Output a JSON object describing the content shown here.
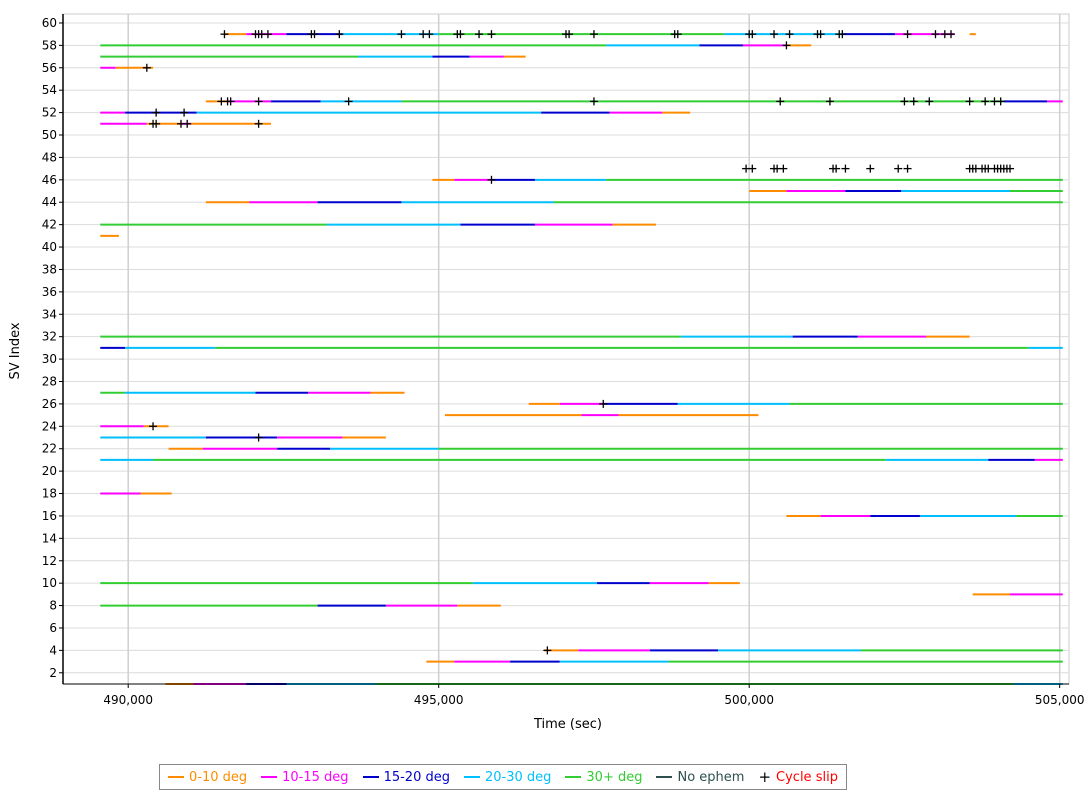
{
  "chart_data": {
    "type": "timeline",
    "xlabel": "Time (sec)",
    "ylabel": "SV Index",
    "xlim": [
      488950,
      505150
    ],
    "ylim": [
      1,
      60.8
    ],
    "xticks": [
      490000,
      495000,
      500000,
      505000
    ],
    "xtick_labels": [
      "490,000",
      "495,000",
      "500,000",
      "505,000"
    ],
    "yticks": [
      2,
      4,
      6,
      8,
      10,
      12,
      14,
      16,
      18,
      20,
      22,
      24,
      26,
      28,
      30,
      32,
      34,
      36,
      38,
      40,
      42,
      44,
      46,
      48,
      50,
      52,
      54,
      56,
      58,
      60
    ],
    "grid": true,
    "legend_position": "bottom",
    "colors": {
      "c0": "#ff8c00",
      "c1": "#ff00ff",
      "c2": "#0000cd",
      "c3": "#00bfff",
      "c4": "#32cd32",
      "noeph": "#2f4f4f",
      "slip": "#000000"
    },
    "legend": [
      {
        "key": "c0",
        "label": "0-10 deg"
      },
      {
        "key": "c1",
        "label": "10-15 deg"
      },
      {
        "key": "c2",
        "label": "15-20 deg"
      },
      {
        "key": "c3",
        "label": "20-30 deg"
      },
      {
        "key": "c4",
        "label": "30+ deg"
      },
      {
        "key": "noeph",
        "label": "No ephem"
      },
      {
        "key": "slip",
        "label": "Cycle slip",
        "marker": "plus"
      }
    ],
    "tracks": [
      {
        "sv": 59,
        "segments": [
          [
            491550,
            491900,
            "c0"
          ],
          [
            491900,
            492550,
            "c1"
          ],
          [
            492550,
            492900,
            "c2"
          ],
          [
            492900,
            493450,
            "c2"
          ],
          [
            493450,
            495000,
            "c3"
          ],
          [
            495000,
            499600,
            "c4"
          ],
          [
            499600,
            500800,
            "c3"
          ],
          [
            500800,
            501500,
            "c3"
          ],
          [
            501500,
            502350,
            "c2"
          ],
          [
            502350,
            503300,
            "c1"
          ],
          [
            503550,
            503650,
            "c0"
          ]
        ]
      },
      {
        "sv": 58,
        "segments": [
          [
            489550,
            497700,
            "c4"
          ],
          [
            497700,
            499200,
            "c3"
          ],
          [
            499200,
            499900,
            "c2"
          ],
          [
            499900,
            500600,
            "c1"
          ],
          [
            500600,
            501000,
            "c0"
          ]
        ]
      },
      {
        "sv": 57,
        "segments": [
          [
            489550,
            493700,
            "c4"
          ],
          [
            493700,
            494900,
            "c3"
          ],
          [
            494900,
            495500,
            "c2"
          ],
          [
            495500,
            496050,
            "c1"
          ],
          [
            496050,
            496400,
            "c0"
          ]
        ]
      },
      {
        "sv": 56,
        "segments": [
          [
            489550,
            489800,
            "c1"
          ],
          [
            489800,
            490400,
            "c0"
          ]
        ]
      },
      {
        "sv": 53,
        "segments": [
          [
            491250,
            491600,
            "c0"
          ],
          [
            491600,
            492300,
            "c1"
          ],
          [
            492300,
            493100,
            "c2"
          ],
          [
            493100,
            494400,
            "c3"
          ],
          [
            494400,
            500900,
            "c4"
          ],
          [
            500900,
            504100,
            "c4"
          ],
          [
            504100,
            504800,
            "c2"
          ],
          [
            504800,
            505050,
            "c1"
          ]
        ]
      },
      {
        "sv": 52,
        "segments": [
          [
            489550,
            489950,
            "c1"
          ],
          [
            489950,
            490600,
            "c2"
          ],
          [
            490600,
            491100,
            "c2"
          ],
          [
            491100,
            496650,
            "c3"
          ],
          [
            496650,
            497750,
            "c2"
          ],
          [
            497750,
            498600,
            "c1"
          ],
          [
            498600,
            499050,
            "c0"
          ]
        ]
      },
      {
        "sv": 51,
        "segments": [
          [
            489550,
            490300,
            "c1"
          ],
          [
            490300,
            490850,
            "c0"
          ],
          [
            490850,
            491000,
            "c1"
          ],
          [
            491000,
            492300,
            "c0"
          ]
        ]
      },
      {
        "sv": 46,
        "segments": [
          [
            494900,
            495250,
            "c0"
          ],
          [
            495250,
            495850,
            "c1"
          ],
          [
            495850,
            496550,
            "c2"
          ],
          [
            496550,
            497700,
            "c3"
          ],
          [
            497700,
            505050,
            "c4"
          ]
        ]
      },
      {
        "sv": 45,
        "segments": [
          [
            500000,
            500600,
            "c0"
          ],
          [
            500600,
            501550,
            "c1"
          ],
          [
            501550,
            502450,
            "c2"
          ],
          [
            502450,
            504200,
            "c3"
          ],
          [
            504200,
            505050,
            "c4"
          ]
        ]
      },
      {
        "sv": 44,
        "segments": [
          [
            491250,
            491950,
            "c0"
          ],
          [
            491950,
            493050,
            "c1"
          ],
          [
            493050,
            494400,
            "c2"
          ],
          [
            494400,
            496850,
            "c3"
          ],
          [
            496850,
            505050,
            "c4"
          ]
        ]
      },
      {
        "sv": 42,
        "segments": [
          [
            489550,
            493200,
            "c4"
          ],
          [
            493200,
            495350,
            "c3"
          ],
          [
            495350,
            496550,
            "c2"
          ],
          [
            496550,
            497800,
            "c1"
          ],
          [
            497800,
            498500,
            "c0"
          ]
        ]
      },
      {
        "sv": 41,
        "segments": [
          [
            489550,
            489850,
            "c0"
          ]
        ]
      },
      {
        "sv": 32,
        "segments": [
          [
            489550,
            498900,
            "c4"
          ],
          [
            498900,
            500700,
            "c3"
          ],
          [
            500700,
            501750,
            "c2"
          ],
          [
            501750,
            502850,
            "c1"
          ],
          [
            502850,
            503550,
            "c0"
          ]
        ]
      },
      {
        "sv": 31,
        "segments": [
          [
            489550,
            489950,
            "c2"
          ],
          [
            489950,
            491400,
            "c3"
          ],
          [
            491400,
            504500,
            "c4"
          ],
          [
            504500,
            505050,
            "c3"
          ]
        ]
      },
      {
        "sv": 27,
        "segments": [
          [
            489550,
            489950,
            "c4"
          ],
          [
            489950,
            492050,
            "c3"
          ],
          [
            492050,
            492900,
            "c2"
          ],
          [
            492900,
            493900,
            "c1"
          ],
          [
            493900,
            494450,
            "c0"
          ]
        ]
      },
      {
        "sv": 26,
        "segments": [
          [
            496450,
            496950,
            "c0"
          ],
          [
            496950,
            497650,
            "c1"
          ],
          [
            497650,
            498850,
            "c2"
          ],
          [
            498850,
            500650,
            "c3"
          ],
          [
            500650,
            505050,
            "c4"
          ]
        ]
      },
      {
        "sv": 25,
        "segments": [
          [
            495100,
            497300,
            "c0"
          ],
          [
            497300,
            497900,
            "c1"
          ],
          [
            497900,
            500150,
            "c0"
          ]
        ]
      },
      {
        "sv": 24,
        "segments": [
          [
            489550,
            490250,
            "c1"
          ],
          [
            490250,
            490650,
            "c0"
          ]
        ]
      },
      {
        "sv": 23,
        "segments": [
          [
            489550,
            491250,
            "c3"
          ],
          [
            491250,
            492400,
            "c2"
          ],
          [
            492400,
            493450,
            "c1"
          ],
          [
            493450,
            494150,
            "c0"
          ]
        ]
      },
      {
        "sv": 22,
        "segments": [
          [
            490650,
            491200,
            "c0"
          ],
          [
            491200,
            492400,
            "c1"
          ],
          [
            492400,
            493250,
            "c2"
          ],
          [
            493250,
            495000,
            "c3"
          ],
          [
            495000,
            505050,
            "c4"
          ]
        ]
      },
      {
        "sv": 21,
        "segments": [
          [
            489550,
            490400,
            "c3"
          ],
          [
            490400,
            502200,
            "c4"
          ],
          [
            502200,
            503850,
            "c3"
          ],
          [
            503850,
            504600,
            "c2"
          ],
          [
            504600,
            505050,
            "c1"
          ]
        ]
      },
      {
        "sv": 18,
        "segments": [
          [
            489550,
            490200,
            "c1"
          ],
          [
            490200,
            490700,
            "c0"
          ]
        ]
      },
      {
        "sv": 16,
        "segments": [
          [
            500600,
            501150,
            "c0"
          ],
          [
            501150,
            501950,
            "c1"
          ],
          [
            501950,
            502750,
            "c2"
          ],
          [
            502750,
            504300,
            "c3"
          ],
          [
            504300,
            505050,
            "c4"
          ]
        ]
      },
      {
        "sv": 10,
        "segments": [
          [
            489550,
            495550,
            "c4"
          ],
          [
            495550,
            497550,
            "c3"
          ],
          [
            497550,
            498400,
            "c2"
          ],
          [
            498400,
            499350,
            "c1"
          ],
          [
            499350,
            499850,
            "c0"
          ]
        ]
      },
      {
        "sv": 9,
        "segments": [
          [
            503600,
            504200,
            "c0"
          ],
          [
            504200,
            505050,
            "c1"
          ]
        ]
      },
      {
        "sv": 8,
        "segments": [
          [
            489550,
            493050,
            "c4"
          ],
          [
            493050,
            494150,
            "c2"
          ],
          [
            494150,
            495300,
            "c1"
          ],
          [
            495300,
            496000,
            "c0"
          ]
        ]
      },
      {
        "sv": 4,
        "segments": [
          [
            496700,
            497250,
            "c0"
          ],
          [
            497250,
            498400,
            "c1"
          ],
          [
            498400,
            499500,
            "c2"
          ],
          [
            499500,
            501800,
            "c3"
          ],
          [
            501800,
            505050,
            "c4"
          ]
        ]
      },
      {
        "sv": 3,
        "segments": [
          [
            494800,
            495250,
            "c0"
          ],
          [
            495250,
            496150,
            "c1"
          ],
          [
            496150,
            496950,
            "c2"
          ],
          [
            496950,
            498700,
            "c3"
          ],
          [
            498700,
            505050,
            "c4"
          ]
        ]
      },
      {
        "sv": 1,
        "segments": [
          [
            490600,
            491050,
            "c0"
          ],
          [
            491050,
            491900,
            "c1"
          ],
          [
            491900,
            492550,
            "c2"
          ],
          [
            492550,
            494000,
            "c3"
          ],
          [
            494000,
            504250,
            "c4"
          ],
          [
            504250,
            505050,
            "c3"
          ]
        ]
      }
    ],
    "cycle_slips": [
      {
        "sv": 59,
        "x": [
          491550,
          492050,
          492100,
          492150,
          492250,
          492950,
          493000,
          493400,
          494400,
          494750,
          494850,
          495300,
          495350,
          495650,
          495850,
          497050,
          497100,
          497500,
          498800,
          498850,
          500000,
          500050,
          500400,
          500650,
          501100,
          501150,
          501450,
          501500,
          502550,
          503000,
          503150,
          503250
        ]
      },
      {
        "sv": 58,
        "x": [
          500600
        ]
      },
      {
        "sv": 56,
        "x": [
          490300
        ]
      },
      {
        "sv": 53,
        "x": [
          491500,
          491600,
          491650,
          492100,
          493550,
          497500,
          500500,
          501300,
          502500,
          502650,
          502900,
          503550,
          503800,
          503950,
          504050
        ]
      },
      {
        "sv": 52,
        "x": [
          490450,
          490900
        ]
      },
      {
        "sv": 51,
        "x": [
          490400,
          490450,
          490850,
          490950,
          492100
        ]
      },
      {
        "sv": 47,
        "x": [
          499950,
          500050,
          500400,
          500450,
          500550,
          501350,
          501400,
          501550,
          501950,
          502400,
          502550,
          503550,
          503600,
          503650,
          503750,
          503800,
          503850,
          503950,
          504000,
          504050,
          504100,
          504150,
          504200
        ]
      },
      {
        "sv": 46,
        "x": [
          495850
        ]
      },
      {
        "sv": 26,
        "x": [
          497650
        ]
      },
      {
        "sv": 24,
        "x": [
          490400
        ]
      },
      {
        "sv": 23,
        "x": [
          492100
        ]
      },
      {
        "sv": 4,
        "x": [
          496750
        ]
      }
    ]
  }
}
